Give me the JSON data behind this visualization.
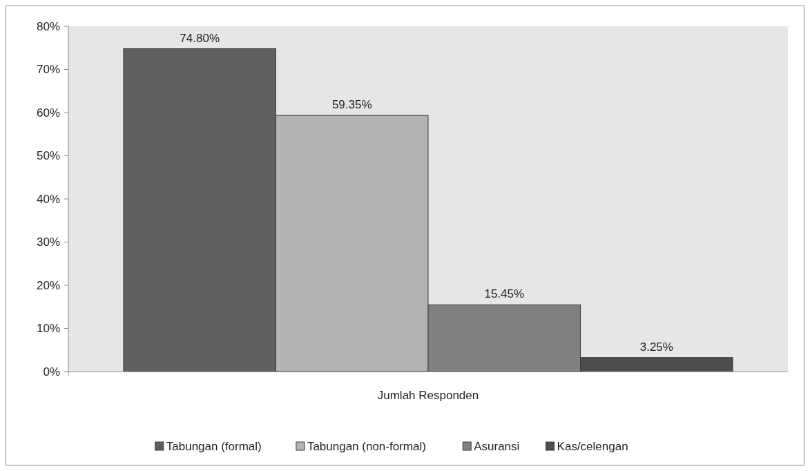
{
  "chart_data": {
    "type": "bar",
    "categories": [
      "Jumlah Responden"
    ],
    "series": [
      {
        "name": "Tabungan (formal)",
        "color": "#5f5f5f",
        "values": [
          74.8
        ],
        "value_labels": [
          "74.80%"
        ]
      },
      {
        "name": "Tabungan (non-formal)",
        "color": "#b3b3b3",
        "values": [
          59.35
        ],
        "value_labels": [
          "59.35%"
        ]
      },
      {
        "name": "Asuransi",
        "color": "#808080",
        "values": [
          15.45
        ],
        "value_labels": [
          "15.45%"
        ]
      },
      {
        "name": "Kas/celengan",
        "color": "#4d4d4d",
        "values": [
          3.25
        ],
        "value_labels": [
          "3.25%"
        ]
      }
    ],
    "ylim": [
      0,
      80
    ],
    "yticks": [
      {
        "value": 0,
        "label": "0%"
      },
      {
        "value": 10,
        "label": "10%"
      },
      {
        "value": 20,
        "label": "20%"
      },
      {
        "value": 30,
        "label": "30%"
      },
      {
        "value": 40,
        "label": "40%"
      },
      {
        "value": 50,
        "label": "50%"
      },
      {
        "value": 60,
        "label": "60%"
      },
      {
        "value": 70,
        "label": "70%"
      },
      {
        "value": 80,
        "label": "80%"
      }
    ],
    "grid": false,
    "legend": "bottom"
  }
}
